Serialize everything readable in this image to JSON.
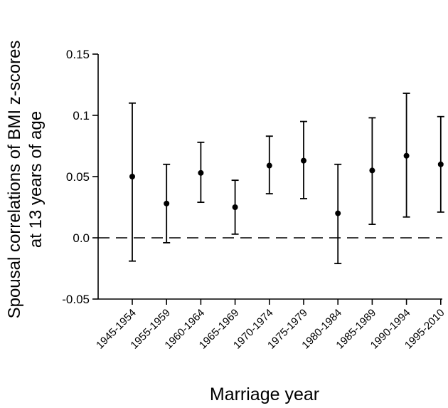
{
  "chart_data": {
    "type": "scatter",
    "ylabel_line1": "Spousal correlations of BMI z-scores",
    "ylabel_line2": "at 13 years of age",
    "xlabel": "Marriage year",
    "ylim": [
      -0.05,
      0.15
    ],
    "yticks": [
      "-0.05",
      "0.0",
      "0.05",
      "0.1",
      "0.15"
    ],
    "ytick_values": [
      -0.05,
      0.0,
      0.05,
      0.1,
      0.15
    ],
    "reference_line": 0.0,
    "categories": [
      "1945-1954",
      "1955-1959",
      "1960-1964",
      "1965-1969",
      "1970-1974",
      "1975-1979",
      "1980-1984",
      "1985-1989",
      "1990-1994",
      "1995-2010"
    ],
    "values": [
      0.05,
      0.028,
      0.053,
      0.025,
      0.059,
      0.063,
      0.02,
      0.055,
      0.067,
      0.06
    ],
    "ci_lower": [
      -0.019,
      -0.004,
      0.029,
      0.003,
      0.036,
      0.032,
      -0.021,
      0.011,
      0.017,
      0.021
    ],
    "ci_upper": [
      0.11,
      0.06,
      0.078,
      0.047,
      0.083,
      0.095,
      0.06,
      0.098,
      0.118,
      0.099
    ],
    "grid": false,
    "legend": "none"
  }
}
